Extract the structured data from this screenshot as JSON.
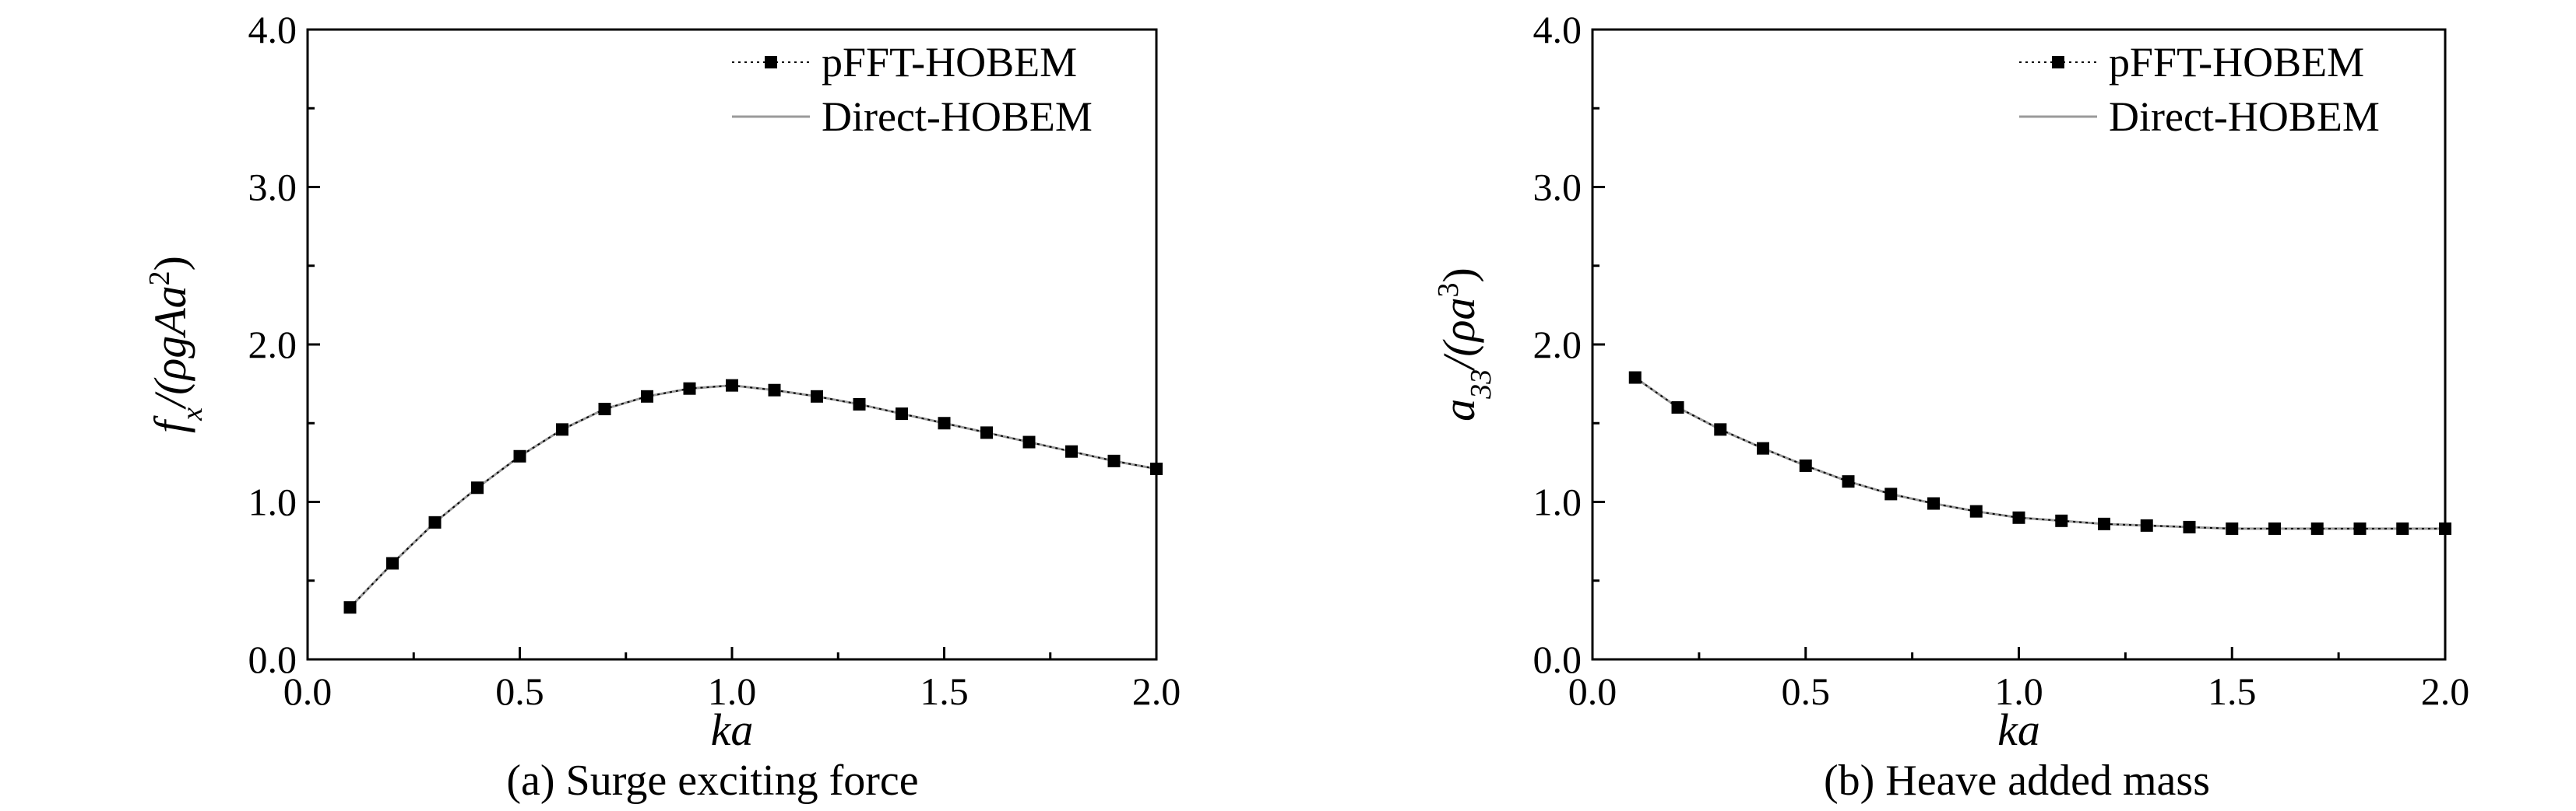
{
  "chart_data": [
    {
      "type": "line",
      "caption": "(a) Surge exciting force",
      "xlabel": "ka",
      "ylabel": "f_x/(ρgAa²)",
      "ylabel_parts": {
        "f": "f",
        "sub": "x",
        "mid": "/(ρgAa",
        "sup": "2",
        "end": ")"
      },
      "xlim": [
        0.0,
        2.0
      ],
      "ylim": [
        0.0,
        4.0
      ],
      "xticks": [
        "0.0",
        "0.5",
        "1.0",
        "1.5",
        "2.0"
      ],
      "yticks": [
        "0.0",
        "1.0",
        "2.0",
        "3.0",
        "4.0"
      ],
      "grid": false,
      "legend_position": "top-right",
      "series": [
        {
          "name": "pFFT-HOBEM",
          "style": "markers-square",
          "x": [
            0.1,
            0.2,
            0.3,
            0.4,
            0.5,
            0.6,
            0.7,
            0.8,
            0.9,
            1.0,
            1.1,
            1.2,
            1.3,
            1.4,
            1.5,
            1.6,
            1.7,
            1.8,
            1.9,
            2.0
          ],
          "y": [
            0.33,
            0.61,
            0.87,
            1.09,
            1.29,
            1.46,
            1.59,
            1.67,
            1.72,
            1.74,
            1.71,
            1.67,
            1.62,
            1.56,
            1.5,
            1.44,
            1.38,
            1.32,
            1.26,
            1.21
          ]
        },
        {
          "name": "Direct-HOBEM",
          "style": "solid-gray",
          "x": [
            0.1,
            0.2,
            0.3,
            0.4,
            0.5,
            0.6,
            0.7,
            0.8,
            0.9,
            1.0,
            1.1,
            1.2,
            1.3,
            1.4,
            1.5,
            1.6,
            1.7,
            1.8,
            1.9,
            2.0
          ],
          "y": [
            0.33,
            0.61,
            0.87,
            1.09,
            1.29,
            1.46,
            1.59,
            1.67,
            1.72,
            1.74,
            1.71,
            1.67,
            1.62,
            1.56,
            1.5,
            1.44,
            1.38,
            1.32,
            1.26,
            1.21
          ]
        }
      ]
    },
    {
      "type": "line",
      "caption": "(b) Heave added mass",
      "xlabel": "ka",
      "ylabel": "a_33/(ρa³)",
      "ylabel_parts": {
        "f": "a",
        "sub": "33",
        "mid": "/(ρa",
        "sup": "3",
        "end": ")"
      },
      "xlim": [
        0.0,
        2.0
      ],
      "ylim": [
        0.0,
        4.0
      ],
      "xticks": [
        "0.0",
        "0.5",
        "1.0",
        "1.5",
        "2.0"
      ],
      "yticks": [
        "0.0",
        "1.0",
        "2.0",
        "3.0",
        "4.0"
      ],
      "grid": false,
      "legend_position": "top-right",
      "series": [
        {
          "name": "pFFT-HOBEM",
          "style": "markers-square",
          "x": [
            0.1,
            0.2,
            0.3,
            0.4,
            0.5,
            0.6,
            0.7,
            0.8,
            0.9,
            1.0,
            1.1,
            1.2,
            1.3,
            1.4,
            1.5,
            1.6,
            1.7,
            1.8,
            1.9,
            2.0
          ],
          "y": [
            1.79,
            1.6,
            1.46,
            1.34,
            1.23,
            1.13,
            1.05,
            0.99,
            0.94,
            0.9,
            0.88,
            0.86,
            0.85,
            0.84,
            0.83,
            0.83,
            0.83,
            0.83,
            0.83,
            0.83
          ]
        },
        {
          "name": "Direct-HOBEM",
          "style": "solid-gray",
          "x": [
            0.1,
            0.2,
            0.3,
            0.4,
            0.5,
            0.6,
            0.7,
            0.8,
            0.9,
            1.0,
            1.1,
            1.2,
            1.3,
            1.4,
            1.5,
            1.6,
            1.7,
            1.8,
            1.9,
            2.0
          ],
          "y": [
            1.79,
            1.6,
            1.46,
            1.34,
            1.23,
            1.13,
            1.05,
            0.99,
            0.94,
            0.9,
            0.88,
            0.86,
            0.85,
            0.84,
            0.83,
            0.83,
            0.83,
            0.83,
            0.83,
            0.83
          ]
        }
      ]
    }
  ]
}
